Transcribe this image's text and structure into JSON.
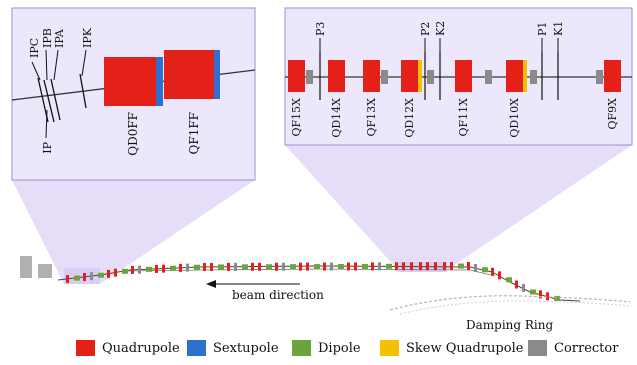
{
  "colors": {
    "quadrupole": "#e32119",
    "sextupole": "#2f6fd0",
    "dipole": "#6ca33b",
    "skew_quadrupole": "#f5c000",
    "corrector": "#8a8a8a",
    "highlight": "#ddd3f6",
    "beamline": "#333333"
  },
  "left_inset": {
    "markers": [
      "IPC",
      "IPB",
      "IPA",
      "IPK",
      "IP"
    ],
    "magnets": [
      "QD0FF",
      "QF1FF"
    ]
  },
  "right_inset": {
    "markers": [
      "P3",
      "P2",
      "K2",
      "P1",
      "K1"
    ],
    "magnets": [
      "QF15X",
      "QD14X",
      "QF13X",
      "QD12X",
      "QF11X",
      "QD10X",
      "QF9X"
    ]
  },
  "overview": {
    "beam_direction_label": "beam direction",
    "damping_ring_label": "Damping Ring"
  },
  "legend": [
    {
      "label": "Quadrupole",
      "color_key": "quadrupole"
    },
    {
      "label": "Sextupole",
      "color_key": "sextupole"
    },
    {
      "label": "Dipole",
      "color_key": "dipole"
    },
    {
      "label": "Skew Quadrupole",
      "color_key": "skew_quadrupole"
    },
    {
      "label": "Corrector",
      "color_key": "corrector"
    }
  ]
}
